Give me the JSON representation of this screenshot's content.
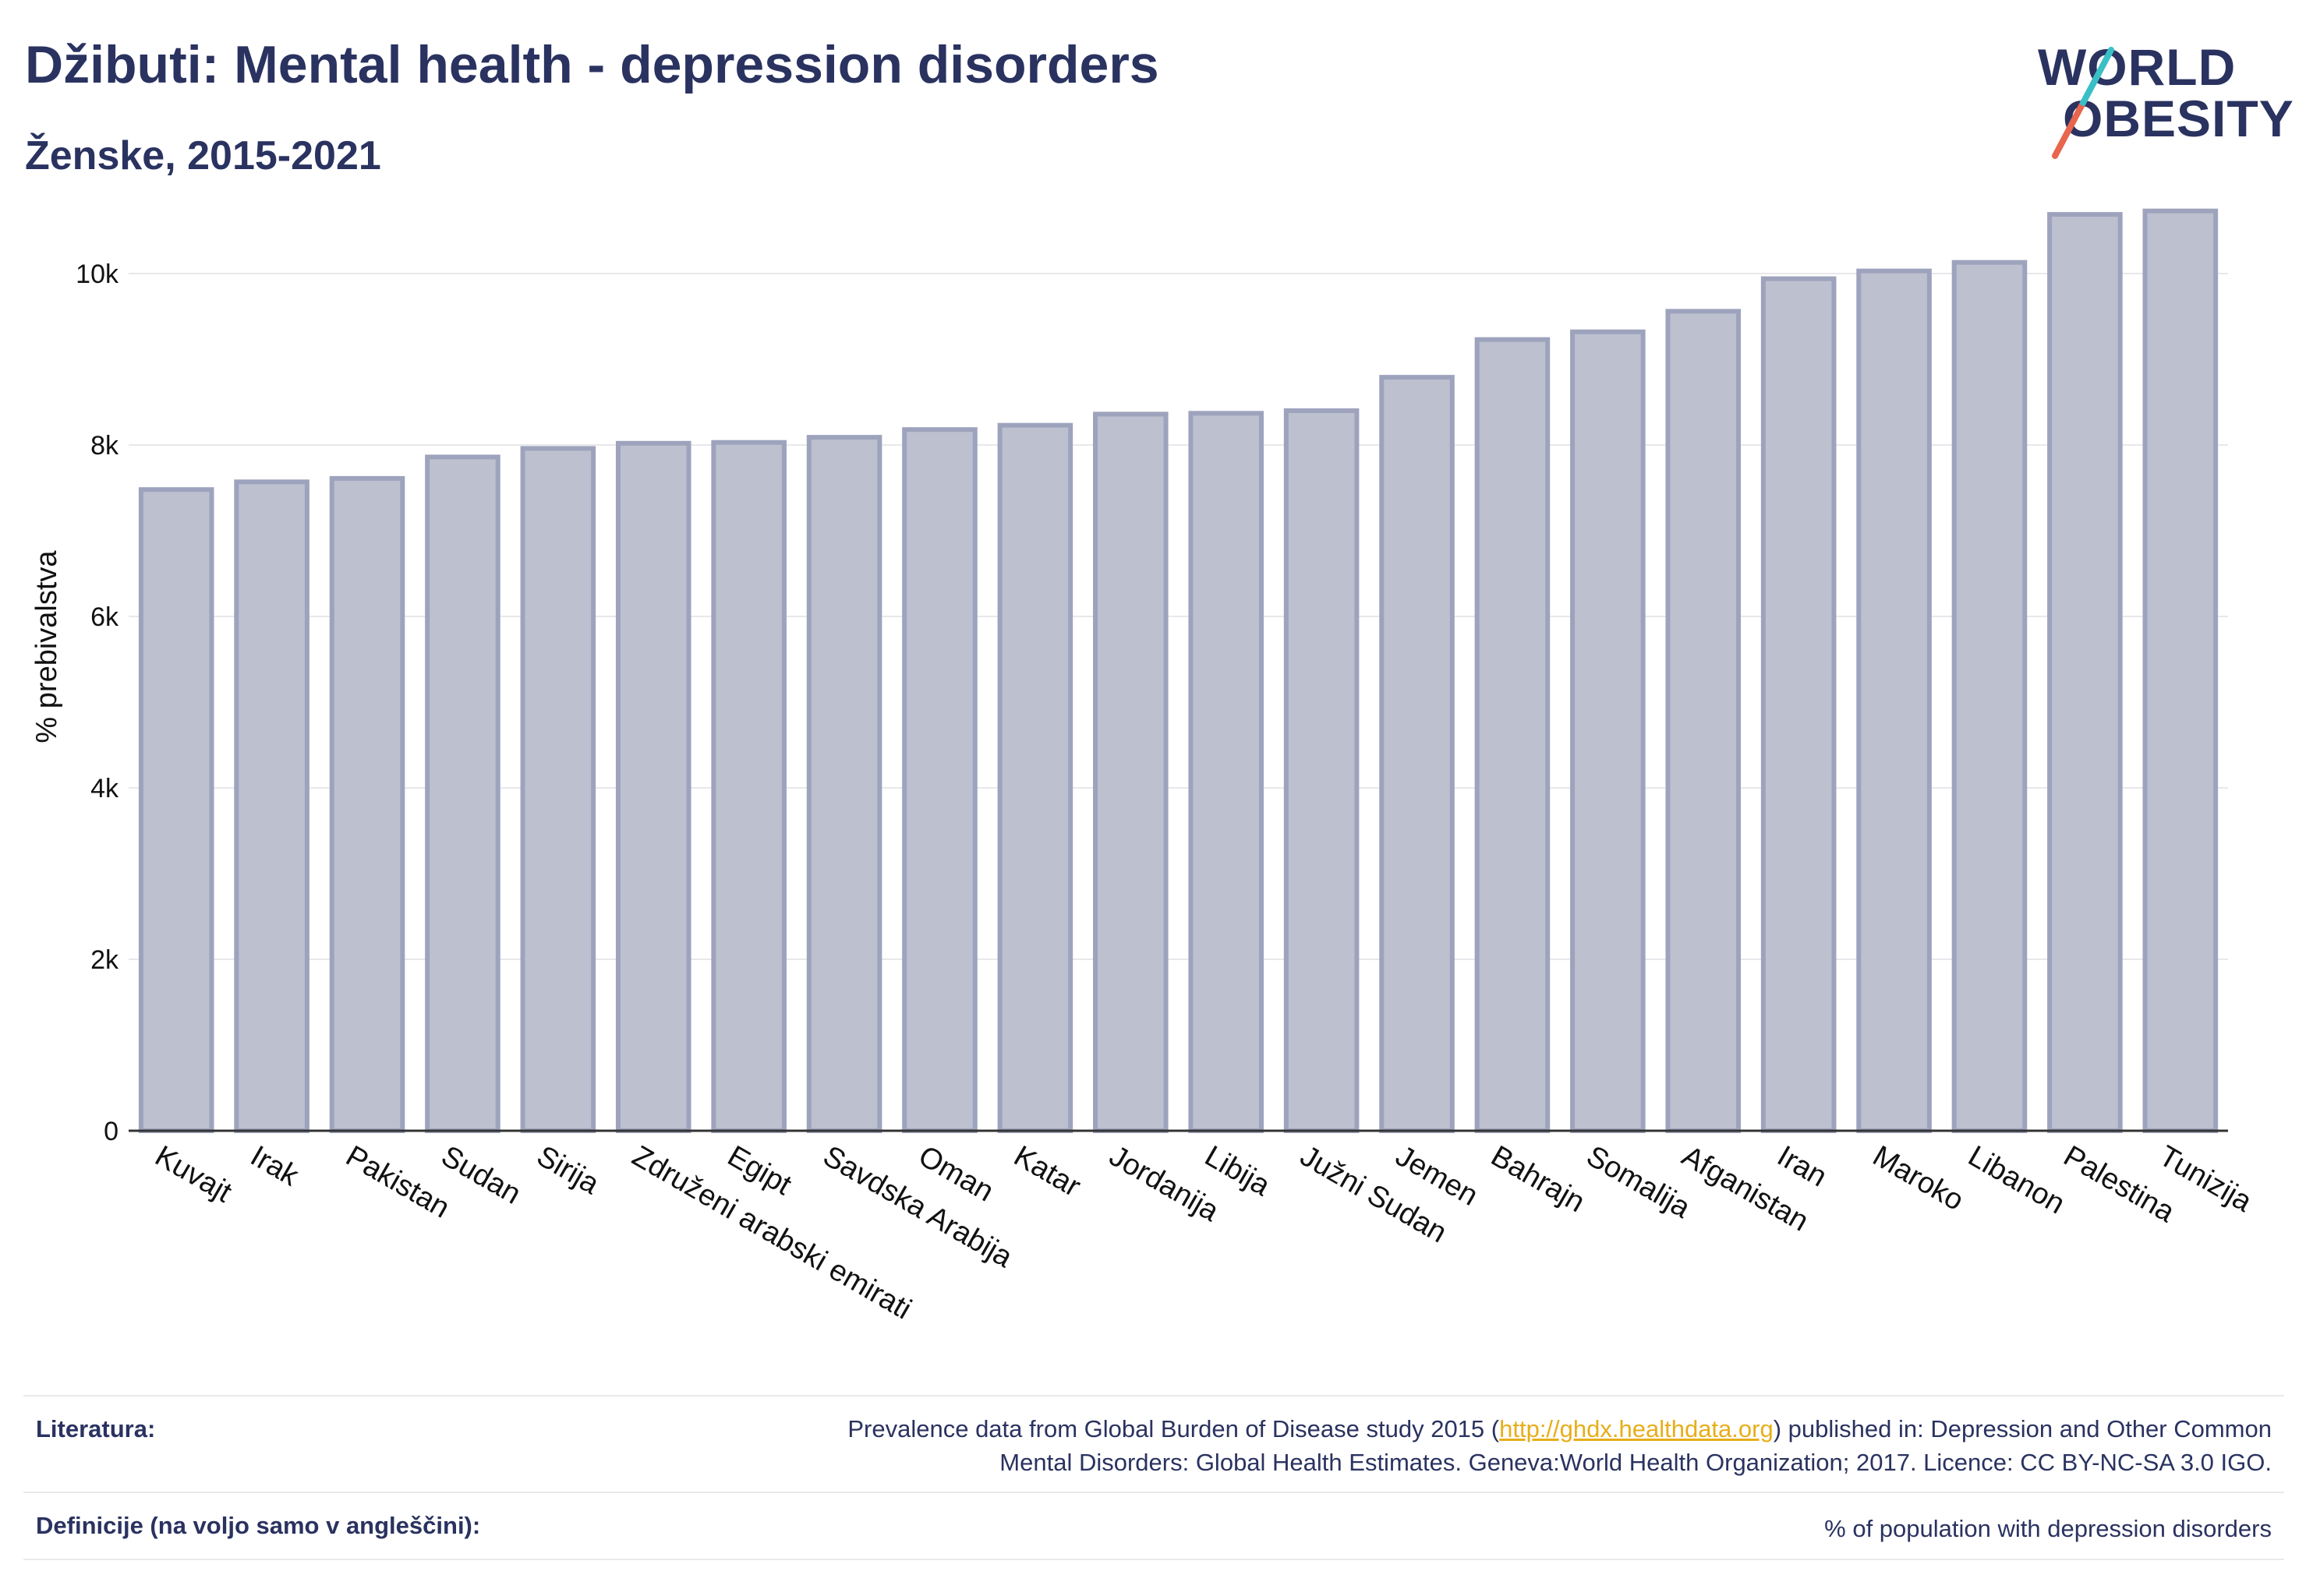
{
  "header": {
    "title": "Džibuti: Mental health - depression disorders",
    "subtitle": "Ženske, 2015-2021"
  },
  "logo": {
    "line1": "WORLD",
    "line2": "OBESITY",
    "accent_colors": [
      "#e8654e",
      "#3bbfc7"
    ]
  },
  "chart_data": {
    "type": "bar",
    "ylabel": "% prebivalstva",
    "ylim": [
      0,
      11000
    ],
    "yticks": [
      0,
      2000,
      4000,
      6000,
      8000,
      10000
    ],
    "ytick_labels": [
      "0",
      "2k",
      "4k",
      "6k",
      "8k",
      "10k"
    ],
    "grid": true,
    "bar_fill": "#bdc0cf",
    "bar_stroke": "#9ea3bd",
    "categories": [
      "Kuvajt",
      "Irak",
      "Pakistan",
      "Sudan",
      "Sirija",
      "Združeni arabski emirati",
      "Egipt",
      "Savdska Arabija",
      "Oman",
      "Katar",
      "Jordanija",
      "Libija",
      "Južni Sudan",
      "Jemen",
      "Bahrajn",
      "Somalija",
      "Afganistan",
      "Iran",
      "Maroko",
      "Libanon",
      "Palestina",
      "Tunizija"
    ],
    "values": [
      7480,
      7570,
      7610,
      7860,
      7960,
      8020,
      8030,
      8090,
      8180,
      8230,
      8360,
      8370,
      8400,
      8790,
      9230,
      9320,
      9560,
      9940,
      10030,
      10130,
      10690,
      10730
    ]
  },
  "footer": {
    "sources_label": "Literatura:",
    "sources_text_1": "Prevalence data from Global Burden of Disease study 2015 (",
    "sources_link": "http://ghdx.healthdata.org",
    "sources_text_2": ") published in: Depression and Other Common",
    "sources_text_3": "Mental Disorders: Global Health Estimates. Geneva:World Health Organization; 2017. Licence: CC BY-NC-SA 3.0 IGO.",
    "definitions_label": "Definicije (na voljo samo v angleščini):",
    "definitions_text": "% of population with depression disorders"
  }
}
